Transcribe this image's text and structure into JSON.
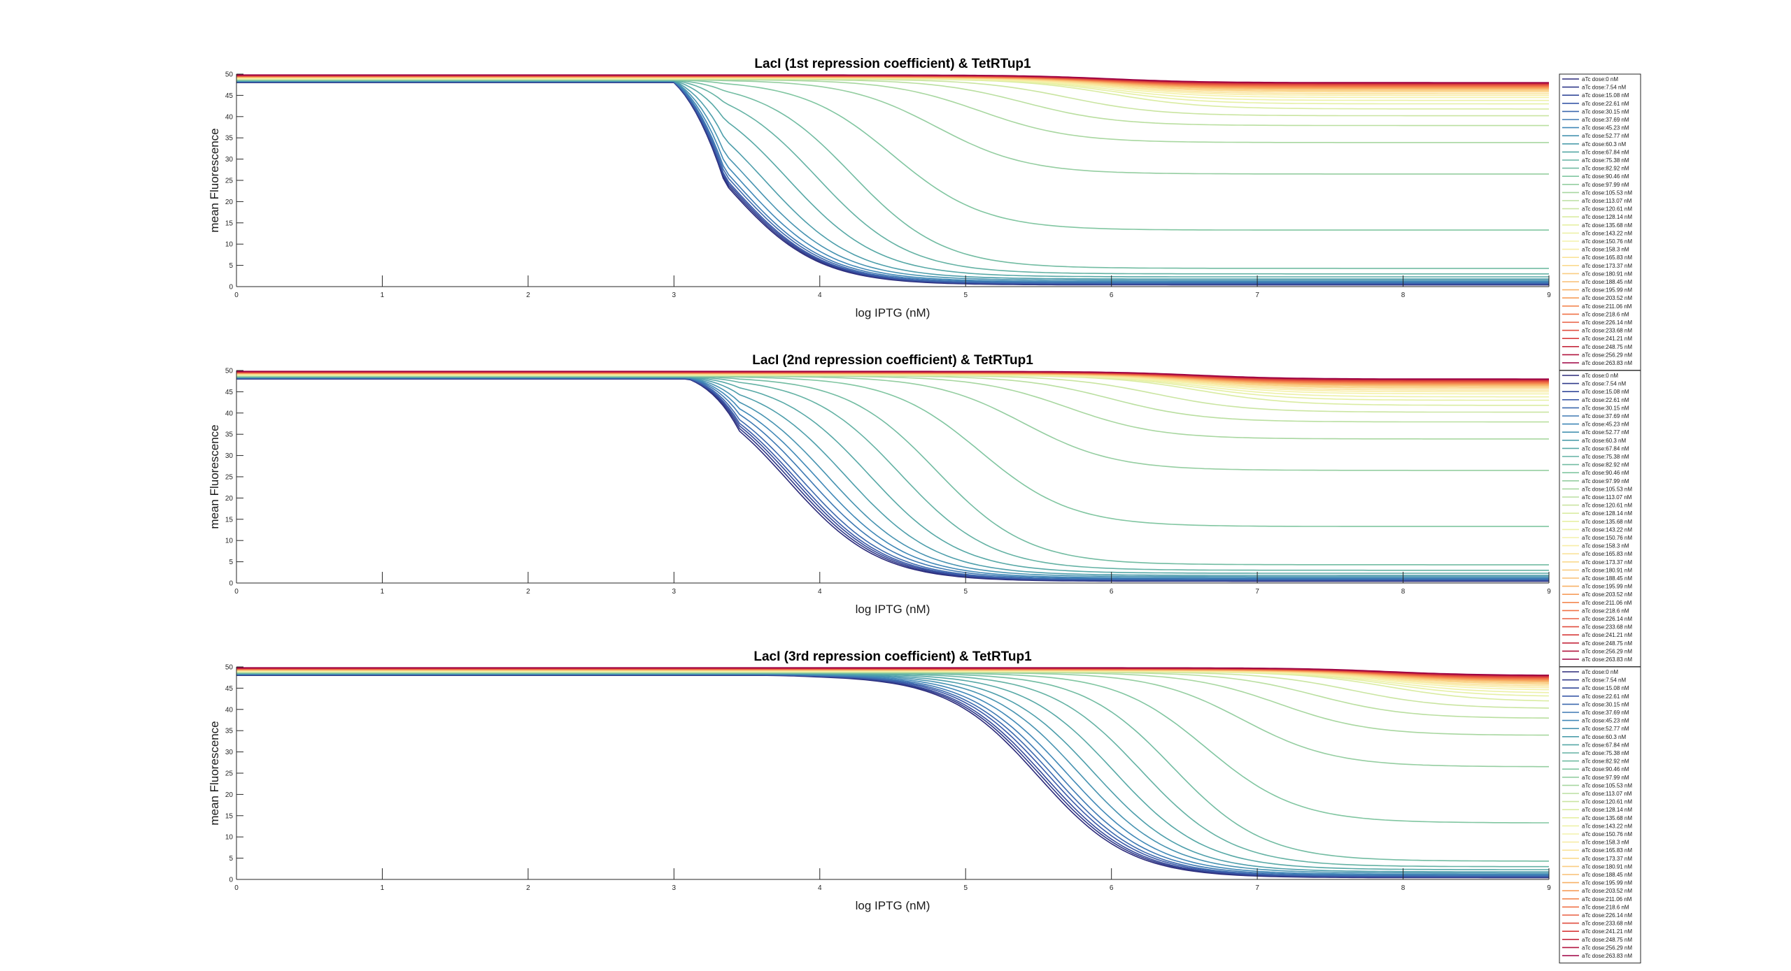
{
  "chart_data": [
    {
      "type": "line",
      "title": "LacI (1st repression coefficient) & TetRTup1",
      "xlabel": "log IPTG (nM)",
      "ylabel": "mean Fluorescence",
      "xlim": [
        0,
        9
      ],
      "ylim": [
        0,
        50
      ],
      "xticks": [
        "0",
        "1",
        "2",
        "3",
        "4",
        "5",
        "6",
        "7",
        "8",
        "9"
      ],
      "yticks": [
        "0",
        "5",
        "10",
        "15",
        "20",
        "25",
        "30",
        "35",
        "40",
        "45",
        "50"
      ],
      "grid": false,
      "legend_position": "outside-right",
      "transition_start": 3.0,
      "transition_midpoints": [
        3.35,
        3.36,
        3.37,
        3.38,
        3.4,
        3.42,
        3.46,
        3.52,
        3.62,
        3.78,
        3.98,
        4.22,
        4.5,
        4.8,
        5.1,
        5.4,
        5.7,
        6.0
      ],
      "low_plateaus": [
        0.4,
        0.5,
        0.6,
        0.7,
        0.8,
        1.0,
        1.2,
        1.5,
        1.8,
        2.3,
        3.0,
        4.3,
        13.3,
        26.5,
        33.9,
        37.9,
        40.2,
        41.8,
        43.0,
        43.8,
        44.5,
        45.0,
        45.4,
        45.8,
        46.1,
        46.4,
        46.6,
        46.8,
        47.0,
        47.2,
        47.4,
        47.5,
        47.7,
        47.8,
        47.9,
        48.0
      ]
    },
    {
      "type": "line",
      "title": "LacI (2nd repression coefficient) & TetRTup1",
      "xlabel": "log IPTG (nM)",
      "ylabel": "mean Fluorescence",
      "xlim": [
        0,
        9
      ],
      "ylim": [
        0,
        50
      ],
      "xticks": [
        "0",
        "1",
        "2",
        "3",
        "4",
        "5",
        "6",
        "7",
        "8",
        "9"
      ],
      "yticks": [
        "0",
        "5",
        "10",
        "15",
        "20",
        "25",
        "30",
        "35",
        "40",
        "45",
        "50"
      ],
      "grid": false,
      "legend_position": "outside-right",
      "transition_start": 3.1,
      "transition_midpoints": [
        3.78,
        3.8,
        3.82,
        3.84,
        3.87,
        3.92,
        3.98,
        4.06,
        4.18,
        4.34,
        4.55,
        4.8,
        5.1,
        5.4,
        5.7,
        6.0,
        6.3,
        6.6
      ],
      "low_plateaus": [
        0.4,
        0.5,
        0.6,
        0.7,
        0.8,
        1.0,
        1.2,
        1.5,
        1.8,
        2.3,
        3.0,
        4.3,
        13.3,
        26.5,
        33.9,
        37.9,
        40.2,
        41.8,
        43.0,
        43.8,
        44.5,
        45.0,
        45.4,
        45.8,
        46.1,
        46.4,
        46.6,
        46.8,
        47.0,
        47.2,
        47.4,
        47.5,
        47.7,
        47.8,
        47.9,
        48.0
      ]
    },
    {
      "type": "line",
      "title": "LacI (3rd repression coefficient) & TetRTup1",
      "xlabel": "log IPTG (nM)",
      "ylabel": "mean Fluorescence",
      "xlim": [
        0,
        9
      ],
      "ylim": [
        0,
        50
      ],
      "xticks": [
        "0",
        "1",
        "2",
        "3",
        "4",
        "5",
        "6",
        "7",
        "8",
        "9"
      ],
      "yticks": [
        "0",
        "5",
        "10",
        "15",
        "20",
        "25",
        "30",
        "35",
        "40",
        "45",
        "50"
      ],
      "grid": false,
      "legend_position": "outside-right",
      "transition_start": 3.6,
      "transition_midpoints": [
        5.5,
        5.52,
        5.54,
        5.57,
        5.6,
        5.64,
        5.7,
        5.78,
        5.88,
        6.02,
        6.2,
        6.42,
        6.65,
        6.9,
        7.15,
        7.4,
        7.65,
        7.9
      ],
      "low_plateaus": [
        0.4,
        0.5,
        0.6,
        0.7,
        0.8,
        1.0,
        1.2,
        1.5,
        1.8,
        2.3,
        3.0,
        4.3,
        13.3,
        26.5,
        33.9,
        37.9,
        40.2,
        41.8,
        43.0,
        43.8,
        44.5,
        45.0,
        45.4,
        45.8,
        46.1,
        46.4,
        46.6,
        46.8,
        47.0,
        47.2,
        47.4,
        47.5,
        47.7,
        47.8,
        47.9,
        48.0
      ]
    }
  ],
  "series_names": [
    "aTc dose:0 nM",
    "aTc dose:7.54 nM",
    "aTc dose:15.08 nM",
    "aTc dose:22.61 nM",
    "aTc dose:30.15 nM",
    "aTc dose:37.69 nM",
    "aTc dose:45.23 nM",
    "aTc dose:52.77 nM",
    "aTc dose:60.3 nM",
    "aTc dose:67.84 nM",
    "aTc dose:75.38 nM",
    "aTc dose:82.92 nM",
    "aTc dose:90.46 nM",
    "aTc dose:97.99 nM",
    "aTc dose:105.53 nM",
    "aTc dose:113.07 nM",
    "aTc dose:120.61 nM",
    "aTc dose:128.14 nM",
    "aTc dose:135.68 nM",
    "aTc dose:143.22 nM",
    "aTc dose:150.76 nM",
    "aTc dose:158.3 nM",
    "aTc dose:165.83 nM",
    "aTc dose:173.37 nM",
    "aTc dose:180.91 nM",
    "aTc dose:188.45 nM",
    "aTc dose:195.99 nM",
    "aTc dose:203.52 nM",
    "aTc dose:211.06 nM",
    "aTc dose:218.6 nM",
    "aTc dose:226.14 nM",
    "aTc dose:233.68 nM",
    "aTc dose:241.21 nM",
    "aTc dose:248.75 nM",
    "aTc dose:256.29 nM",
    "aTc dose:263.83 nM"
  ],
  "colormap": "spectral-reversed",
  "colors": {
    "axis": "#262626",
    "colormap_stops": [
      "#2b2a7a",
      "#3a58a8",
      "#3f86b8",
      "#52a6a6",
      "#7bc3a1",
      "#b3dca0",
      "#e2efa2",
      "#f7f2ad",
      "#fbd78a",
      "#f8ad63",
      "#f06e44",
      "#d63a3a",
      "#9e0142"
    ]
  }
}
